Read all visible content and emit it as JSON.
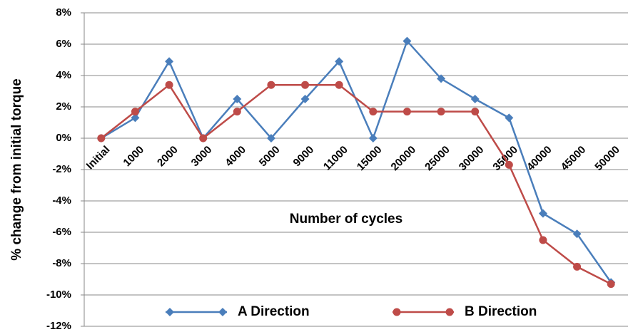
{
  "chart_data": {
    "type": "line",
    "x_label": "Number of cycles",
    "y_label": "% change from initial torque",
    "categories": [
      "Initial",
      "1000",
      "2000",
      "3000",
      "4000",
      "5000",
      "9000",
      "11000",
      "15000",
      "20000",
      "25000",
      "30000",
      "35000",
      "40000",
      "45000",
      "50000"
    ],
    "series": [
      {
        "name": "A Direction",
        "color": "#4a7ebb",
        "marker": "diamond",
        "values": [
          0,
          1.3,
          4.9,
          0,
          2.5,
          0,
          2.5,
          4.9,
          0,
          6.2,
          3.8,
          2.5,
          1.3,
          -4.8,
          -6.1,
          -9.2
        ]
      },
      {
        "name": "B Direction",
        "color": "#be4b48",
        "marker": "circle",
        "values": [
          0,
          1.7,
          3.4,
          0,
          1.7,
          3.4,
          3.4,
          3.4,
          1.7,
          1.7,
          1.7,
          1.7,
          -1.7,
          -6.5,
          -8.2,
          -9.3
        ]
      }
    ],
    "ylim": [
      -12,
      8
    ],
    "yticks": [
      {
        "value": -12,
        "label": "-12%"
      },
      {
        "value": -10,
        "label": "-10%"
      },
      {
        "value": -8,
        "label": "-8%"
      },
      {
        "value": -6,
        "label": "-6%"
      },
      {
        "value": -4,
        "label": "-4%"
      },
      {
        "value": -2,
        "label": "-2%"
      },
      {
        "value": 0,
        "label": "0%"
      },
      {
        "value": 2,
        "label": "2%"
      },
      {
        "value": 4,
        "label": "4%"
      },
      {
        "value": 6,
        "label": "6%"
      },
      {
        "value": 8,
        "label": "8%"
      }
    ],
    "grid": true,
    "legend": "bottom"
  }
}
